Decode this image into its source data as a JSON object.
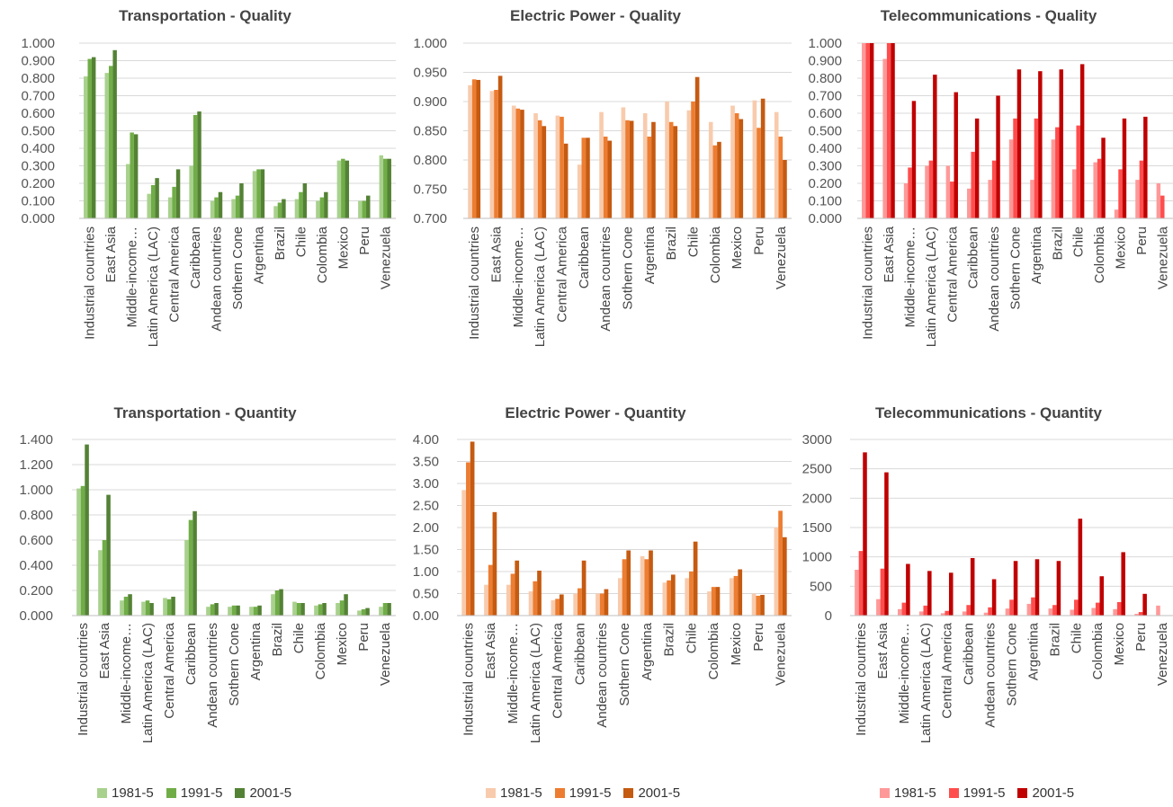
{
  "countries": [
    "Industrial countries",
    "East Asia",
    "Middle-income…",
    "Latin America (LAC)",
    "Central America",
    "Caribbean",
    "Andean countries",
    "Sothern Cone",
    "Argentina",
    "Brazil",
    "Chile",
    "Colombia",
    "Mexico",
    "Peru",
    "Venezuela"
  ],
  "periods": [
    "1981-5",
    "1991-5",
    "2001-5"
  ],
  "palettes": {
    "green": [
      "#a9d18e",
      "#70ad47",
      "#548235"
    ],
    "orange": [
      "#f8cbad",
      "#ed7d31",
      "#c55a11"
    ],
    "red": [
      "#ff9999",
      "#ff4d4d",
      "#c00000"
    ]
  },
  "legends": [
    {
      "palette": "green",
      "labels": [
        "1981-5",
        "1991-5",
        "2001-5"
      ]
    },
    {
      "palette": "orange",
      "labels": [
        "1981-5",
        "1991-5",
        "2001-5"
      ]
    },
    {
      "palette": "red",
      "labels": [
        "1981-5",
        "1991-5",
        "2001-5"
      ]
    }
  ],
  "chart_data": [
    {
      "type": "bar",
      "title": "Transportation  - Quality",
      "palette": "green",
      "ylim": [
        0,
        1.0
      ],
      "yticks": [
        0,
        0.1,
        0.2,
        0.3,
        0.4,
        0.5,
        0.6,
        0.7,
        0.8,
        0.9,
        1.0
      ],
      "ytick_labels": [
        "0.000",
        "0.100",
        "0.200",
        "0.300",
        "0.400",
        "0.500",
        "0.600",
        "0.700",
        "0.800",
        "0.900",
        "1.000"
      ],
      "categories": [
        "Industrial countries",
        "East Asia",
        "Middle-income…",
        "Latin America (LAC)",
        "Central America",
        "Caribbean",
        "Andean countries",
        "Sothern Cone",
        "Argentina",
        "Brazil",
        "Chile",
        "Colombia",
        "Mexico",
        "Peru",
        "Venezuela"
      ],
      "series": [
        {
          "name": "1981-5",
          "values": [
            0.81,
            0.83,
            0.31,
            0.14,
            0.12,
            0.3,
            0.1,
            0.11,
            0.27,
            0.07,
            0.11,
            0.1,
            0.33,
            0.1,
            0.36
          ]
        },
        {
          "name": "1991-5",
          "values": [
            0.91,
            0.87,
            0.49,
            0.19,
            0.18,
            0.59,
            0.12,
            0.13,
            0.28,
            0.09,
            0.15,
            0.12,
            0.34,
            0.1,
            0.34
          ]
        },
        {
          "name": "2001-5",
          "values": [
            0.92,
            0.96,
            0.48,
            0.23,
            0.28,
            0.61,
            0.15,
            0.2,
            0.28,
            0.11,
            0.2,
            0.15,
            0.33,
            0.13,
            0.34
          ]
        }
      ]
    },
    {
      "type": "bar",
      "title": "Electric Power - Quality",
      "palette": "orange",
      "ylim": [
        0.7,
        1.0
      ],
      "yticks": [
        0.7,
        0.75,
        0.8,
        0.85,
        0.9,
        0.95,
        1.0
      ],
      "ytick_labels": [
        "0.700",
        "0.750",
        "0.800",
        "0.850",
        "0.900",
        "0.950",
        "1.000"
      ],
      "categories": [
        "Industrial countries",
        "East Asia",
        "Middle-income…",
        "Latin America (LAC)",
        "Central America",
        "Caribbean",
        "Andean countries",
        "Sothern Cone",
        "Argentina",
        "Brazil",
        "Chile",
        "Colombia",
        "Mexico",
        "Peru",
        "Venezuela"
      ],
      "series": [
        {
          "name": "1981-5",
          "values": [
            0.928,
            0.918,
            0.893,
            0.88,
            0.876,
            0.792,
            0.882,
            0.89,
            0.88,
            0.9,
            0.885,
            0.865,
            0.893,
            0.902,
            0.882
          ]
        },
        {
          "name": "1991-5",
          "values": [
            0.938,
            0.92,
            0.888,
            0.868,
            0.874,
            0.838,
            0.84,
            0.868,
            0.84,
            0.865,
            0.9,
            0.825,
            0.88,
            0.855,
            0.84
          ]
        },
        {
          "name": "2001-5",
          "values": [
            0.937,
            0.944,
            0.886,
            0.858,
            0.828,
            0.838,
            0.833,
            0.867,
            0.865,
            0.858,
            0.942,
            0.831,
            0.87,
            0.905,
            0.8
          ]
        }
      ]
    },
    {
      "type": "bar",
      "title": "Telecommunications - Quality",
      "palette": "red",
      "ylim": [
        0,
        1.0
      ],
      "yticks": [
        0,
        0.1,
        0.2,
        0.3,
        0.4,
        0.5,
        0.6,
        0.7,
        0.8,
        0.9,
        1.0
      ],
      "ytick_labels": [
        "0.000",
        "0.100",
        "0.200",
        "0.300",
        "0.400",
        "0.500",
        "0.600",
        "0.700",
        "0.800",
        "0.900",
        "1.000"
      ],
      "categories": [
        "Industrial countries",
        "East Asia",
        "Middle-income…",
        "Latin America (LAC)",
        "Central America",
        "Caribbean",
        "Andean countries",
        "Sothern Cone",
        "Argentina",
        "Brazil",
        "Chile",
        "Colombia",
        "Mexico",
        "Peru",
        "Venezuela"
      ],
      "series": [
        {
          "name": "1981-5",
          "values": [
            1.0,
            0.91,
            0.2,
            0.3,
            0.3,
            0.17,
            0.22,
            0.45,
            0.22,
            0.45,
            0.28,
            0.32,
            0.05,
            0.22,
            0.2
          ]
        },
        {
          "name": "1991-5",
          "values": [
            1.0,
            1.0,
            0.29,
            0.33,
            0.21,
            0.38,
            0.33,
            0.57,
            0.57,
            0.52,
            0.53,
            0.34,
            0.28,
            0.33,
            0.13
          ]
        },
        {
          "name": "2001-5",
          "values": [
            1.0,
            1.0,
            0.67,
            0.82,
            0.72,
            0.57,
            0.7,
            0.85,
            0.84,
            0.85,
            0.88,
            0.46,
            0.57,
            0.58,
            0.0
          ]
        }
      ]
    },
    {
      "type": "bar",
      "title": "Transportation  - Quantity",
      "palette": "green",
      "ylim": [
        0,
        1.4
      ],
      "yticks": [
        0,
        0.2,
        0.4,
        0.6,
        0.8,
        1.0,
        1.2,
        1.4
      ],
      "ytick_labels": [
        "0.000",
        "0.200",
        "0.400",
        "0.600",
        "0.800",
        "1.000",
        "1.200",
        "1.400"
      ],
      "categories": [
        "Industrial countries",
        "East Asia",
        "Middle-income…",
        "Latin America (LAC)",
        "Central America",
        "Caribbean",
        "Andean countries",
        "Sothern Cone",
        "Argentina",
        "Brazil",
        "Chile",
        "Colombia",
        "Mexico",
        "Peru",
        "Venezuela"
      ],
      "series": [
        {
          "name": "1981-5",
          "values": [
            1.01,
            0.52,
            0.12,
            0.11,
            0.14,
            0.6,
            0.07,
            0.07,
            0.07,
            0.17,
            0.11,
            0.08,
            0.1,
            0.04,
            0.07
          ]
        },
        {
          "name": "1991-5",
          "values": [
            1.03,
            0.6,
            0.15,
            0.12,
            0.13,
            0.76,
            0.09,
            0.08,
            0.07,
            0.2,
            0.1,
            0.09,
            0.12,
            0.05,
            0.1
          ]
        },
        {
          "name": "2001-5",
          "values": [
            1.36,
            0.96,
            0.17,
            0.1,
            0.15,
            0.83,
            0.1,
            0.08,
            0.08,
            0.21,
            0.1,
            0.1,
            0.17,
            0.06,
            0.1
          ]
        }
      ]
    },
    {
      "type": "bar",
      "title": "Electric Power - Quantity",
      "palette": "orange",
      "ylim": [
        0,
        4.0
      ],
      "yticks": [
        0,
        0.5,
        1.0,
        1.5,
        2.0,
        2.5,
        3.0,
        3.5,
        4.0
      ],
      "ytick_labels": [
        "0.00",
        "0.50",
        "1.00",
        "1.50",
        "2.00",
        "2.50",
        "3.00",
        "3.50",
        "4.00"
      ],
      "categories": [
        "Industrial countries",
        "East Asia",
        "Middle-income…",
        "Latin America (LAC)",
        "Central America",
        "Caribbean",
        "Andean countries",
        "Sothern Cone",
        "Argentina",
        "Brazil",
        "Chile",
        "Colombia",
        "Mexico",
        "Peru",
        "Venezuela"
      ],
      "series": [
        {
          "name": "1981-5",
          "values": [
            2.85,
            0.7,
            0.7,
            0.55,
            0.35,
            0.5,
            0.5,
            0.85,
            1.35,
            0.75,
            0.85,
            0.55,
            0.85,
            0.5,
            2.0
          ]
        },
        {
          "name": "1991-5",
          "values": [
            3.48,
            1.15,
            0.95,
            0.78,
            0.38,
            0.62,
            0.5,
            1.28,
            1.28,
            0.8,
            1.0,
            0.65,
            0.9,
            0.45,
            2.38
          ]
        },
        {
          "name": "2001-5",
          "values": [
            3.95,
            2.35,
            1.25,
            1.02,
            0.48,
            1.25,
            0.6,
            1.48,
            1.48,
            0.93,
            1.68,
            0.65,
            1.05,
            0.47,
            1.78
          ]
        }
      ]
    },
    {
      "type": "bar",
      "title": "Telecommunications - Quantity",
      "palette": "red",
      "ylim": [
        0,
        3000
      ],
      "yticks": [
        0,
        500,
        1000,
        1500,
        2000,
        2500,
        3000
      ],
      "ytick_labels": [
        "0",
        "500",
        "1000",
        "1500",
        "2000",
        "2500",
        "3000"
      ],
      "categories": [
        "Industrial countries",
        "East Asia",
        "Middle-income…",
        "Latin America (LAC)",
        "Central America",
        "Caribbean",
        "Andean countries",
        "Sothern Cone",
        "Argentina",
        "Brazil",
        "Chile",
        "Colombia",
        "Mexico",
        "Peru",
        "Venezuela"
      ],
      "series": [
        {
          "name": "1981-5",
          "values": [
            780,
            280,
            110,
            70,
            40,
            70,
            50,
            120,
            200,
            120,
            100,
            130,
            110,
            30,
            170
          ]
        },
        {
          "name": "1991-5",
          "values": [
            1100,
            800,
            220,
            170,
            80,
            180,
            140,
            270,
            310,
            180,
            270,
            220,
            230,
            60,
            0
          ]
        },
        {
          "name": "2001-5",
          "values": [
            2780,
            2440,
            880,
            760,
            730,
            980,
            620,
            930,
            960,
            930,
            1650,
            670,
            1080,
            370,
            0
          ]
        }
      ]
    }
  ]
}
